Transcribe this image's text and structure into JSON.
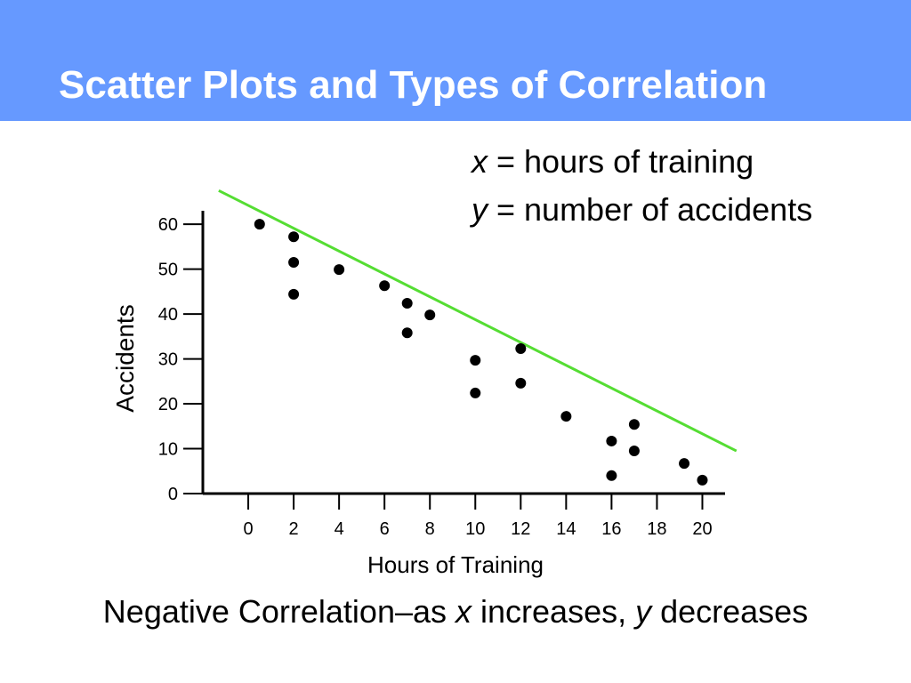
{
  "title": "Scatter Plots and Types of Correlation",
  "definitions": [
    {
      "variable": "x",
      "text": " = hours of training"
    },
    {
      "variable": "y",
      "text": " = number of accidents"
    }
  ],
  "caption": [
    "Negative Correlation–as ",
    "x",
    " increases, ",
    "y",
    " decreases"
  ],
  "chart_data": {
    "type": "scatter",
    "x_label": "Hours of Training",
    "y_label": "Accidents",
    "color": "#000000",
    "x": [
      0.5,
      2,
      2,
      2,
      4,
      6,
      7,
      7,
      8,
      10,
      10,
      12,
      12,
      14,
      16,
      16,
      17,
      17,
      19.2,
      20
    ],
    "values": [
      60,
      57.2,
      51.5,
      44.4,
      49.9,
      46.3,
      42.4,
      35.8,
      39.8,
      29.7,
      22.4,
      32.3,
      24.6,
      17.2,
      11.7,
      4,
      15.4,
      9.5,
      6.7,
      3
    ],
    "xlim": [
      -2,
      21
    ],
    "ylim": [
      0,
      63
    ],
    "xticks": [
      0,
      2,
      4,
      6,
      8,
      10,
      12,
      14,
      16,
      18,
      20
    ],
    "yticks": [
      0,
      10,
      20,
      30,
      40,
      50,
      60
    ],
    "trend_line": {
      "x": [
        -1.3,
        21.5
      ],
      "y": [
        67.5,
        9.5
      ],
      "color": "#55dd33"
    }
  }
}
